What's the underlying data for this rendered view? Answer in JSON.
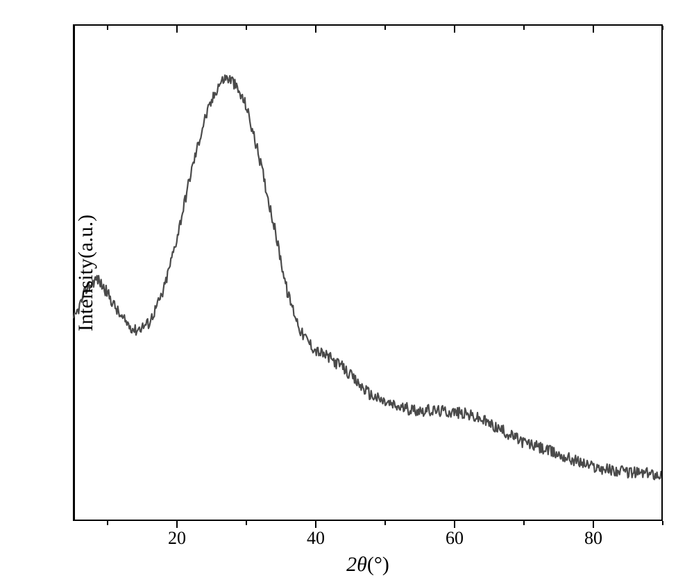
{
  "chart": {
    "type": "line",
    "xlabel_theta": "2θ",
    "xlabel_unit": "(°)",
    "ylabel": "Intensity(a.u.)",
    "xlim": [
      5,
      90
    ],
    "ylim": [
      0,
      100
    ],
    "xtick_major": [
      20,
      40,
      60,
      80
    ],
    "xtick_minor": [
      10,
      30,
      50,
      70,
      90
    ],
    "xtick_labels": [
      "20",
      "40",
      "60",
      "80"
    ],
    "background_color": "#ffffff",
    "line_color": "#4a4a4a",
    "line_width": 2.2,
    "axis_color": "#000000",
    "axis_width": 2.5,
    "tick_length_major": 10,
    "tick_length_minor": 6,
    "font_family": "Times New Roman",
    "xlabel_fontsize": 30,
    "ylabel_fontsize": 30,
    "tick_fontsize": 26,
    "noise_amplitude": 1.2,
    "baseline_points": [
      [
        5,
        40
      ],
      [
        7,
        47
      ],
      [
        8.5,
        49
      ],
      [
        10,
        46
      ],
      [
        12,
        41
      ],
      [
        14,
        38.5
      ],
      [
        16,
        40
      ],
      [
        18,
        46
      ],
      [
        20,
        57
      ],
      [
        22,
        70
      ],
      [
        24,
        81
      ],
      [
        26,
        88
      ],
      [
        27,
        89.5
      ],
      [
        28,
        89
      ],
      [
        30,
        84
      ],
      [
        32,
        73
      ],
      [
        34,
        60
      ],
      [
        36,
        46
      ],
      [
        38,
        38
      ],
      [
        40,
        34.5
      ],
      [
        42,
        33
      ],
      [
        44,
        31
      ],
      [
        46,
        28
      ],
      [
        48,
        25.5
      ],
      [
        50,
        24
      ],
      [
        52,
        23
      ],
      [
        54,
        22.5
      ],
      [
        56,
        22.3
      ],
      [
        58,
        22.2
      ],
      [
        60,
        22
      ],
      [
        62,
        21.5
      ],
      [
        64,
        20.5
      ],
      [
        66,
        19
      ],
      [
        68,
        17.5
      ],
      [
        70,
        16
      ],
      [
        72,
        15
      ],
      [
        74,
        14
      ],
      [
        76,
        13
      ],
      [
        78,
        12
      ],
      [
        80,
        11
      ],
      [
        82,
        10.5
      ],
      [
        84,
        10
      ],
      [
        86,
        9.8
      ],
      [
        88,
        9.6
      ],
      [
        90,
        9.5
      ]
    ]
  }
}
